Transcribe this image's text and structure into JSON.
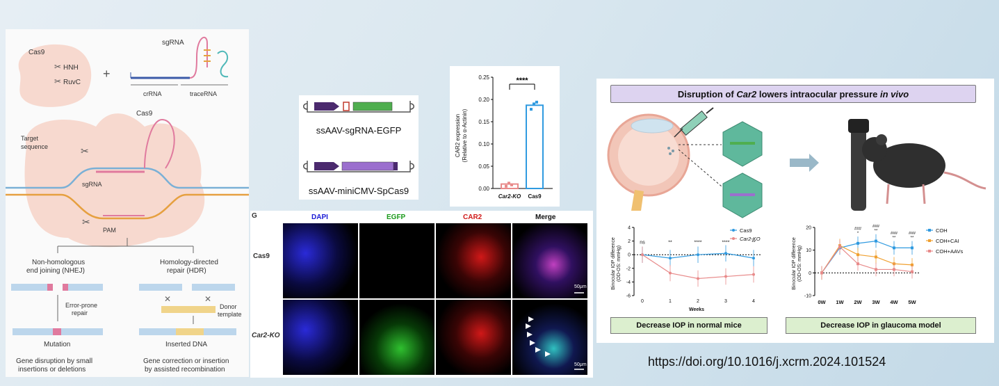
{
  "left_panel": {
    "cas9_label": "Cas9",
    "hnh": "HNH",
    "ruvc": "RuvC",
    "plus": "+",
    "sgrna_top": "sgRNA",
    "crrna": "crRNA",
    "tracerna": "traceRNA",
    "cas9_complex": "Cas9",
    "target_sequence": "Target sequence",
    "sgrna_mid": "sgRNA",
    "pam": "PAM",
    "nhej_title_1": "Non-homologous",
    "nhej_title_2": "end joining (NHEJ)",
    "hdr_title_1": "Homology-directed",
    "hdr_title_2": "repair (HDR)",
    "error_prone_1": "Error-prone",
    "error_prone_2": "repair",
    "donor_1": "Donor",
    "donor_2": "template",
    "mutation": "Mutation",
    "inserted_dna": "Inserted DNA",
    "gene_disruption_1": "Gene disruption by small",
    "gene_disruption_2": "insertions or deletions",
    "gene_correction_1": "Gene correction or insertion",
    "gene_correction_2": "by assisted recombination"
  },
  "vectors": {
    "vector1": "ssAAV-sgRNA-EGFP",
    "vector2": "ssAAV-miniCMV-SpCas9"
  },
  "colors": {
    "egfp": "#4fae4f",
    "cas9": "#9b6fce",
    "promoter": "#4b2a6e",
    "bar_ko": "#e88a8a",
    "bar_cas9": "#2f9ae0",
    "coh": "#2f9ae0",
    "coh_cai": "#f0a030",
    "coh_aavs": "#e88a8a",
    "title_bg": "#ddd3f0",
    "footer_bg": "#dcefcf"
  },
  "bar_chart": {
    "chart_data": {
      "type": "bar",
      "categories": [
        "Car2-KO",
        "Cas9"
      ],
      "values": [
        0.01,
        0.187
      ],
      "points": [
        [
          0.005,
          0.012,
          0.008
        ],
        [
          0.178,
          0.19,
          0.194
        ]
      ],
      "ylabel": "CAR2 expression (Relative to α-Actinin)",
      "yticks": [
        "0.00",
        "0.05",
        "0.10",
        "0.15",
        "0.20",
        "0.25"
      ],
      "ylim": [
        0,
        0.25
      ],
      "significance": "****"
    }
  },
  "micro": {
    "panel_letter": "G",
    "col_labels": [
      "DAPI",
      "EGFP",
      "CAR2",
      "Merge"
    ],
    "row_labels": [
      "Cas9",
      "Car2-KO"
    ],
    "scale": "50μm"
  },
  "right_panel": {
    "title_pre": "Disruption of ",
    "title_gene": "Car2",
    "title_mid": " lowers intraocular pressure ",
    "title_post": "in vivo",
    "footer_left": "Decrease IOP in normal mice",
    "footer_right": "Decrease IOP in glaucoma model"
  },
  "iop_chart1": {
    "chart_data": {
      "type": "line",
      "x": [
        0,
        1,
        2,
        3,
        4
      ],
      "xlabel": "Weeks",
      "ylabel": "Binocular IOP difference (OD-OS: mmHg)",
      "ylim": [
        -6,
        4
      ],
      "yticks": [
        -6,
        -4,
        -2,
        0,
        2,
        4
      ],
      "series": [
        {
          "name": "Cas9",
          "values": [
            0,
            -0.5,
            0,
            0.2,
            -0.5
          ]
        },
        {
          "name": "Car2-KO",
          "values": [
            0,
            -2.7,
            -3.5,
            -3.2,
            -2.9
          ]
        }
      ],
      "significance": [
        "ns",
        "**",
        "****",
        "****",
        "**"
      ]
    }
  },
  "iop_chart2": {
    "chart_data": {
      "type": "line",
      "categories": [
        "0W",
        "1W",
        "2W",
        "3W",
        "4W",
        "5W"
      ],
      "ylabel": "Binocular IOP difference (OD-OS: mmHg)",
      "ylim": [
        -10,
        20
      ],
      "yticks": [
        -10,
        0,
        10,
        20
      ],
      "series": [
        {
          "name": "COH",
          "values": [
            0,
            11,
            13,
            14,
            11,
            11
          ]
        },
        {
          "name": "COH+CAI",
          "values": [
            0,
            12,
            8,
            7,
            4,
            3.5
          ]
        },
        {
          "name": "COH+AAVs",
          "values": [
            0,
            11.5,
            4,
            1.5,
            1.5,
            0.5
          ]
        }
      ],
      "annotations_top": [
        "",
        "",
        "###",
        "###",
        "###",
        "###"
      ],
      "annotations_bottom": [
        "",
        "",
        "*",
        "**",
        "**",
        "**"
      ]
    }
  },
  "doi": "https://doi.org/10.1016/j.xcrm.2024.101524"
}
